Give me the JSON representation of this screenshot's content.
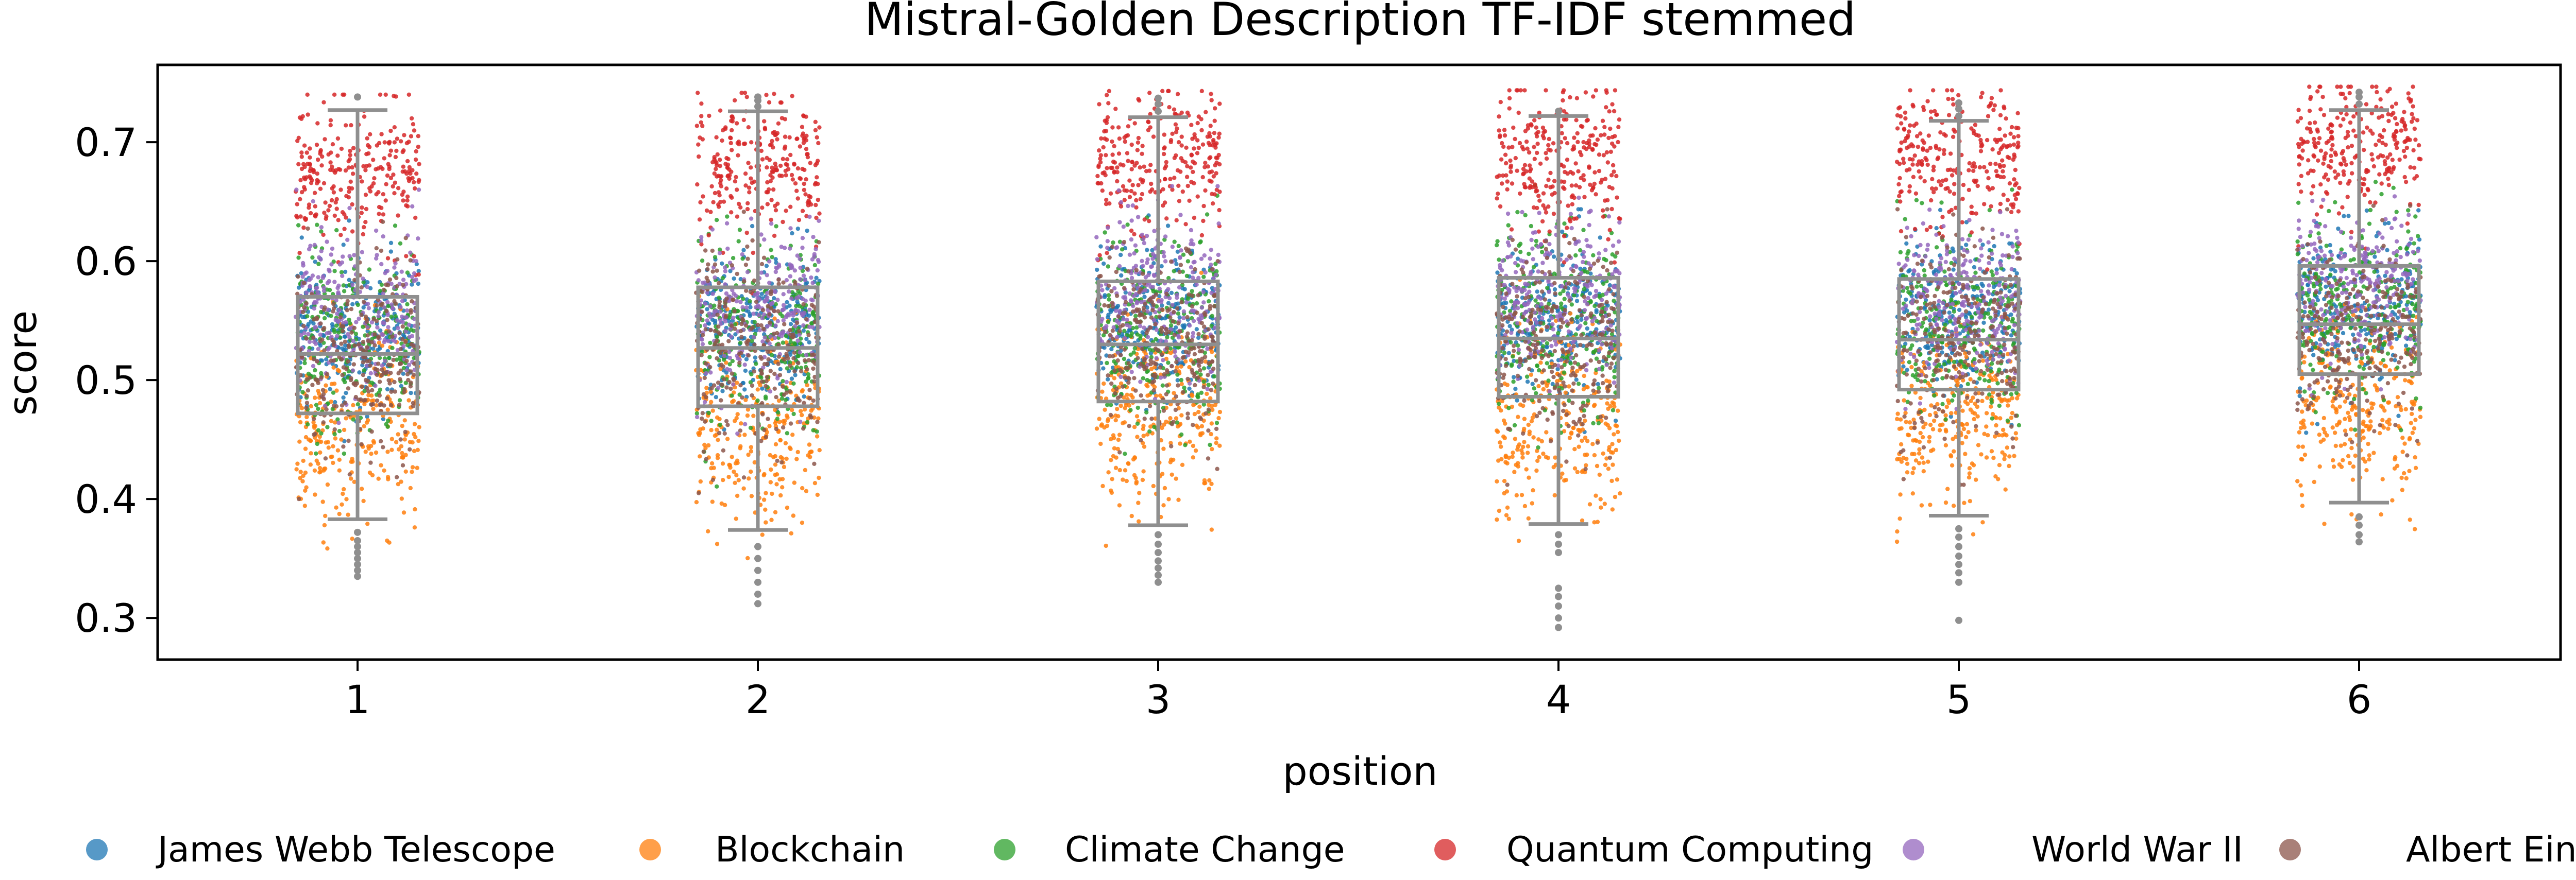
{
  "chart_data": {
    "type": "box+strip",
    "title": "Mistral-Golden Description TF-IDF stemmed",
    "xlabel": "position",
    "ylabel": "score",
    "categories": [
      "1",
      "2",
      "3",
      "4",
      "5",
      "6"
    ],
    "ylim": [
      0.265,
      0.765
    ],
    "yticks": [
      "0.3",
      "0.4",
      "0.5",
      "0.6",
      "0.7"
    ],
    "grid": false,
    "legend_placement": "bottom",
    "boxes": [
      {
        "position": "1",
        "whisker_low": 0.383,
        "q1": 0.472,
        "median": 0.522,
        "q3": 0.57,
        "whisker_high": 0.727,
        "outliers": [
          0.335,
          0.34,
          0.345,
          0.35,
          0.355,
          0.36,
          0.365,
          0.372,
          0.738
        ]
      },
      {
        "position": "2",
        "whisker_low": 0.374,
        "q1": 0.478,
        "median": 0.527,
        "q3": 0.578,
        "whisker_high": 0.726,
        "outliers": [
          0.312,
          0.32,
          0.33,
          0.34,
          0.35,
          0.36,
          0.73,
          0.735,
          0.738
        ]
      },
      {
        "position": "3",
        "whisker_low": 0.378,
        "q1": 0.482,
        "median": 0.53,
        "q3": 0.583,
        "whisker_high": 0.721,
        "outliers": [
          0.33,
          0.336,
          0.342,
          0.348,
          0.355,
          0.362,
          0.37,
          0.726,
          0.732,
          0.737
        ]
      },
      {
        "position": "4",
        "whisker_low": 0.379,
        "q1": 0.486,
        "median": 0.535,
        "q3": 0.586,
        "whisker_high": 0.722,
        "outliers": [
          0.292,
          0.3,
          0.31,
          0.318,
          0.325,
          0.355,
          0.362,
          0.37,
          0.726
        ]
      },
      {
        "position": "5",
        "whisker_low": 0.386,
        "q1": 0.492,
        "median": 0.534,
        "q3": 0.585,
        "whisker_high": 0.718,
        "outliers": [
          0.298,
          0.33,
          0.338,
          0.345,
          0.352,
          0.36,
          0.368,
          0.375,
          0.722,
          0.728,
          0.733
        ]
      },
      {
        "position": "6",
        "whisker_low": 0.397,
        "q1": 0.505,
        "median": 0.547,
        "q3": 0.596,
        "whisker_high": 0.727,
        "outliers": [
          0.364,
          0.37,
          0.378,
          0.385,
          0.732,
          0.738,
          0.742
        ]
      }
    ],
    "series": [
      {
        "name": "James Webb Telescope",
        "color": "#1f77b4",
        "mean": 0.54,
        "sd": 0.032,
        "min": 0.42,
        "max": 0.64
      },
      {
        "name": "Blockchain",
        "color": "#ff7f0e",
        "mean": 0.455,
        "sd": 0.04,
        "min": 0.3,
        "max": 0.6
      },
      {
        "name": "Climate Change",
        "color": "#2ca02c",
        "mean": 0.535,
        "sd": 0.04,
        "min": 0.4,
        "max": 0.66
      },
      {
        "name": "Quantum Computing",
        "color": "#d62728",
        "mean": 0.675,
        "sd": 0.03,
        "min": 0.53,
        "max": 0.74
      },
      {
        "name": "World War II",
        "color": "#9467bd",
        "mean": 0.56,
        "sd": 0.033,
        "min": 0.45,
        "max": 0.66
      },
      {
        "name": "Albert Einstein",
        "color": "#8c564b",
        "mean": 0.52,
        "sd": 0.04,
        "min": 0.4,
        "max": 0.64
      }
    ],
    "position_offsets": [
      0.0,
      0.005,
      0.01,
      0.012,
      0.012,
      0.022
    ]
  }
}
